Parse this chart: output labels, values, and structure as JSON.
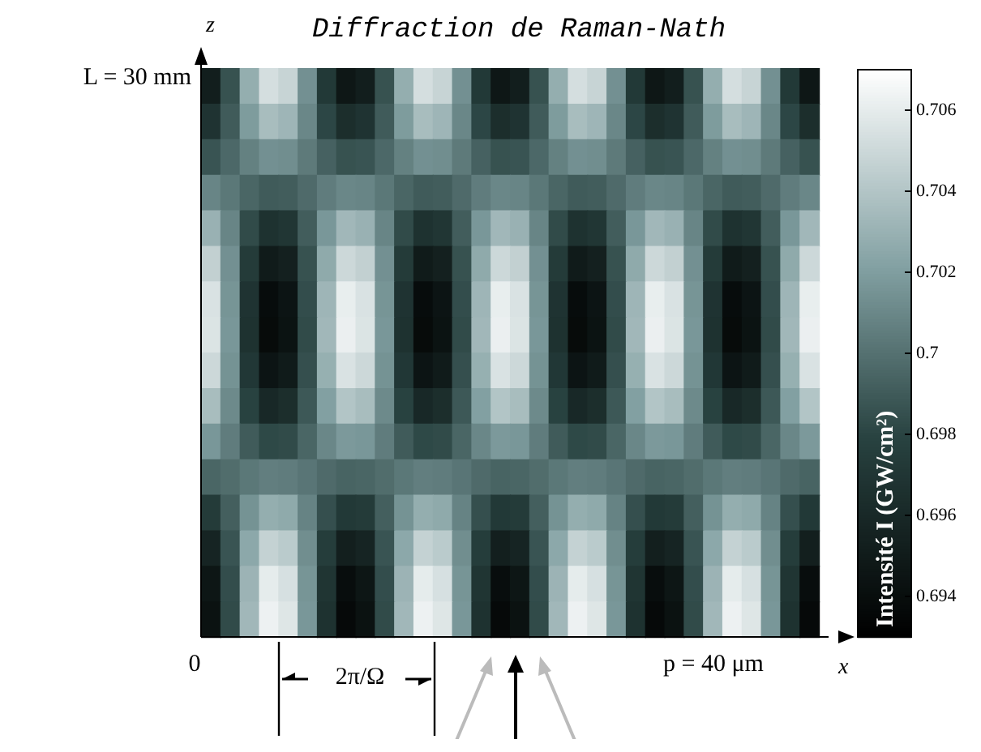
{
  "chart_data": {
    "type": "heatmap",
    "title": "Diffraction de Raman-Nath",
    "xlabel": "x",
    "ylabel": "z",
    "clabel": "Intensité I (GW/cm²)",
    "categories": [
      null,
      null,
      null,
      null,
      null,
      null,
      null,
      null,
      null,
      null,
      null,
      null,
      null,
      null,
      null,
      null,
      null,
      null,
      null,
      null,
      null,
      null,
      null,
      null,
      null,
      null,
      null,
      null,
      null,
      null,
      null,
      null
    ],
    "y_categories": [
      null,
      null,
      null,
      null,
      null,
      null,
      null,
      null,
      null,
      null,
      null,
      null,
      null,
      null,
      null,
      null
    ],
    "cells": [
      [
        0.6952,
        0.6986,
        0.7028,
        0.7053,
        0.7048,
        0.7014,
        0.6972,
        0.6947,
        0.6952,
        0.6986,
        0.7028,
        0.7053,
        0.7048,
        0.7014,
        0.6972,
        0.6947,
        0.6952,
        0.6986,
        0.7028,
        0.7053,
        0.7048,
        0.7014,
        0.6972,
        0.6947,
        0.6952,
        0.6986,
        0.7028,
        0.7053,
        0.7048,
        0.7014,
        0.6972,
        0.6947
      ],
      [
        0.6968,
        0.699,
        0.7019,
        0.7036,
        0.7032,
        0.701,
        0.6981,
        0.6964,
        0.6968,
        0.699,
        0.7019,
        0.7036,
        0.7032,
        0.701,
        0.6981,
        0.6964,
        0.6968,
        0.699,
        0.7019,
        0.7036,
        0.7032,
        0.701,
        0.6981,
        0.6964,
        0.6968,
        0.699,
        0.7019,
        0.7036,
        0.7032,
        0.701,
        0.6981,
        0.6964
      ],
      [
        0.6987,
        0.6996,
        0.7007,
        0.7014,
        0.7013,
        0.7004,
        0.6993,
        0.6986,
        0.6987,
        0.6996,
        0.7007,
        0.7014,
        0.7013,
        0.7004,
        0.6993,
        0.6986,
        0.6987,
        0.6996,
        0.7007,
        0.7014,
        0.7013,
        0.7004,
        0.6993,
        0.6986,
        0.6987,
        0.6996,
        0.7007,
        0.7014,
        0.7013,
        0.7004,
        0.6993,
        0.6986
      ],
      [
        0.7009,
        0.7003,
        0.6995,
        0.699,
        0.6991,
        0.6997,
        0.7005,
        0.701,
        0.7009,
        0.7003,
        0.6995,
        0.699,
        0.6991,
        0.6997,
        0.7005,
        0.701,
        0.7009,
        0.7003,
        0.6995,
        0.699,
        0.6991,
        0.6997,
        0.7005,
        0.701,
        0.7009,
        0.7003,
        0.6995,
        0.699,
        0.6991,
        0.6997,
        0.7005,
        0.701
      ],
      [
        0.703,
        0.7009,
        0.6983,
        0.6967,
        0.697,
        0.6991,
        0.7017,
        0.7033,
        0.703,
        0.7009,
        0.6983,
        0.6967,
        0.697,
        0.6991,
        0.7017,
        0.7033,
        0.703,
        0.7009,
        0.6983,
        0.6967,
        0.697,
        0.6991,
        0.7017,
        0.7033,
        0.703,
        0.7009,
        0.6983,
        0.6967,
        0.697,
        0.6991,
        0.7017,
        0.7033
      ],
      [
        0.7046,
        0.7014,
        0.6974,
        0.695,
        0.6954,
        0.6986,
        0.7026,
        0.705,
        0.7046,
        0.7014,
        0.6974,
        0.695,
        0.6954,
        0.6986,
        0.7026,
        0.705,
        0.7046,
        0.7014,
        0.6974,
        0.695,
        0.6954,
        0.6986,
        0.7026,
        0.705,
        0.7046,
        0.7014,
        0.6974,
        0.695,
        0.6954,
        0.6986,
        0.7026,
        0.705
      ],
      [
        0.7055,
        0.7016,
        0.6968,
        0.6939,
        0.6945,
        0.6984,
        0.7032,
        0.7061,
        0.7055,
        0.7016,
        0.6968,
        0.6939,
        0.6945,
        0.6984,
        0.7032,
        0.7061,
        0.7055,
        0.7016,
        0.6968,
        0.6939,
        0.6945,
        0.6984,
        0.7032,
        0.7061,
        0.7055,
        0.7016,
        0.6968,
        0.6939,
        0.6945,
        0.6984,
        0.7032,
        0.7061
      ],
      [
        0.7056,
        0.7017,
        0.6967,
        0.6938,
        0.6944,
        0.6983,
        0.7033,
        0.7062,
        0.7056,
        0.7017,
        0.6967,
        0.6938,
        0.6944,
        0.6983,
        0.7033,
        0.7062,
        0.7056,
        0.7017,
        0.6967,
        0.6938,
        0.6944,
        0.6983,
        0.7033,
        0.7062,
        0.7056,
        0.7017,
        0.6967,
        0.6938,
        0.6944,
        0.6983,
        0.7033,
        0.7062
      ],
      [
        0.705,
        0.7015,
        0.6971,
        0.6945,
        0.695,
        0.6985,
        0.7029,
        0.7055,
        0.705,
        0.7015,
        0.6971,
        0.6945,
        0.695,
        0.6985,
        0.7029,
        0.7055,
        0.705,
        0.7015,
        0.6971,
        0.6945,
        0.695,
        0.6985,
        0.7029,
        0.7055,
        0.705,
        0.7015,
        0.6971,
        0.6945,
        0.695,
        0.6985,
        0.7029,
        0.7055
      ],
      [
        0.7036,
        0.7011,
        0.6979,
        0.696,
        0.6964,
        0.6989,
        0.7021,
        0.704,
        0.7036,
        0.7011,
        0.6979,
        0.696,
        0.6964,
        0.6989,
        0.7021,
        0.704,
        0.7036,
        0.7011,
        0.6979,
        0.696,
        0.6964,
        0.6989,
        0.7021,
        0.704,
        0.7036,
        0.7011,
        0.6979,
        0.696,
        0.6964,
        0.6989,
        0.7021,
        0.704
      ],
      [
        0.7017,
        0.7005,
        0.699,
        0.6982,
        0.6983,
        0.6995,
        0.701,
        0.7018,
        0.7017,
        0.7005,
        0.699,
        0.6982,
        0.6983,
        0.6995,
        0.701,
        0.7018,
        0.7017,
        0.7005,
        0.699,
        0.6982,
        0.6983,
        0.6995,
        0.701,
        0.7018,
        0.7017,
        0.7005,
        0.699,
        0.6982,
        0.6983,
        0.6995,
        0.701,
        0.7018
      ],
      [
        0.6995,
        0.6998,
        0.7003,
        0.7006,
        0.7005,
        0.7002,
        0.6997,
        0.6994,
        0.6995,
        0.6998,
        0.7003,
        0.7006,
        0.7005,
        0.7002,
        0.6997,
        0.6994,
        0.6995,
        0.6998,
        0.7003,
        0.7006,
        0.7005,
        0.7002,
        0.6997,
        0.6994,
        0.6995,
        0.6998,
        0.7003,
        0.7006,
        0.7005,
        0.7002,
        0.6997,
        0.6994
      ],
      [
        0.6974,
        0.6992,
        0.7015,
        0.7028,
        0.7026,
        0.7008,
        0.6985,
        0.6972,
        0.6974,
        0.6992,
        0.7015,
        0.7028,
        0.7026,
        0.7008,
        0.6985,
        0.6972,
        0.6974,
        0.6992,
        0.7015,
        0.7028,
        0.7026,
        0.7008,
        0.6985,
        0.6972,
        0.6974,
        0.6992,
        0.7015,
        0.7028,
        0.7026,
        0.7008,
        0.6985,
        0.6972
      ],
      [
        0.6957,
        0.6987,
        0.7025,
        0.7047,
        0.7043,
        0.7013,
        0.6975,
        0.6953,
        0.6957,
        0.6987,
        0.7025,
        0.7047,
        0.7043,
        0.7013,
        0.6975,
        0.6953,
        0.6957,
        0.6987,
        0.7025,
        0.7047,
        0.7043,
        0.7013,
        0.6975,
        0.6953,
        0.6957,
        0.6987,
        0.7025,
        0.7047,
        0.7043,
        0.7013,
        0.6975,
        0.6953
      ],
      [
        0.6946,
        0.6984,
        0.7031,
        0.706,
        0.7054,
        0.7016,
        0.6969,
        0.694,
        0.6946,
        0.6984,
        0.7031,
        0.706,
        0.7054,
        0.7016,
        0.6969,
        0.694,
        0.6946,
        0.6984,
        0.7031,
        0.706,
        0.7054,
        0.7016,
        0.6969,
        0.694,
        0.6946,
        0.6984,
        0.7031,
        0.706,
        0.7054,
        0.7016,
        0.6969,
        0.694
      ],
      [
        0.6943,
        0.6983,
        0.7033,
        0.7063,
        0.7057,
        0.7017,
        0.6967,
        0.6937,
        0.6943,
        0.6983,
        0.7033,
        0.7063,
        0.7057,
        0.7017,
        0.6967,
        0.6937,
        0.6943,
        0.6983,
        0.7033,
        0.7063,
        0.7057,
        0.7017,
        0.6967,
        0.6937,
        0.6943,
        0.6983,
        0.7033,
        0.7063,
        0.7057,
        0.7017,
        0.6967,
        0.6937
      ]
    ],
    "clim": [
      0.693,
      0.707
    ],
    "cticks": [
      0.694,
      0.696,
      0.698,
      0.7,
      0.702,
      0.704,
      0.706
    ],
    "annotations": [
      "0",
      "p = 40 μm",
      "L = 30 mm",
      "2π/Ω"
    ]
  }
}
